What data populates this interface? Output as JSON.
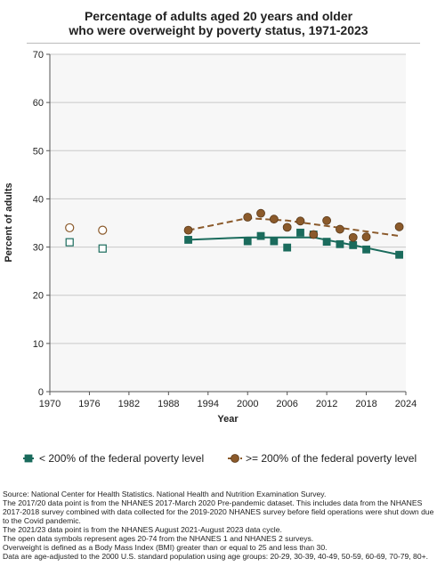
{
  "chart_data": {
    "type": "line",
    "title": [
      "Percentage of adults aged 20 years and older",
      "who were overweight by poverty status, 1971-2023"
    ],
    "xlabel": "Year",
    "ylabel": "Percent of adults",
    "xlim": [
      1970,
      2024
    ],
    "ylim": [
      0,
      70
    ],
    "xticks": [
      1970,
      1976,
      1982,
      1988,
      1994,
      2000,
      2006,
      2012,
      2018,
      2024
    ],
    "yticks": [
      0,
      10,
      20,
      30,
      40,
      50,
      60,
      70
    ],
    "grid": "horizontal",
    "legend_position": "bottom",
    "series": [
      {
        "name": "< 200% of the federal poverty level",
        "color": "#1a6b5c",
        "marker": "square",
        "open_points": [
          {
            "x": 1973,
            "y": 31.0
          },
          {
            "x": 1978,
            "y": 29.7
          }
        ],
        "points": [
          {
            "x": 1991,
            "y": 31.5
          },
          {
            "x": 2000,
            "y": 31.2
          },
          {
            "x": 2002,
            "y": 32.3
          },
          {
            "x": 2004,
            "y": 31.2
          },
          {
            "x": 2006,
            "y": 29.9
          },
          {
            "x": 2008,
            "y": 33.0
          },
          {
            "x": 2010,
            "y": 32.6
          },
          {
            "x": 2012,
            "y": 31.1
          },
          {
            "x": 2014,
            "y": 30.6
          },
          {
            "x": 2016,
            "y": 30.4
          },
          {
            "x": 2018,
            "y": 29.5
          },
          {
            "x": 2023,
            "y": 28.4
          }
        ],
        "trend": [
          {
            "x": 1991,
            "y": 31.5
          },
          {
            "x": 2000,
            "y": 32.0
          },
          {
            "x": 2010,
            "y": 32.0
          },
          {
            "x": 2016,
            "y": 30.4
          },
          {
            "x": 2023,
            "y": 28.4
          }
        ]
      },
      {
        "name": ">= 200% of the federal poverty level",
        "color": "#8b5a2b",
        "marker": "circle",
        "open_points": [
          {
            "x": 1973,
            "y": 34.0
          },
          {
            "x": 1978,
            "y": 33.5
          }
        ],
        "points": [
          {
            "x": 1991,
            "y": 33.5
          },
          {
            "x": 2000,
            "y": 36.2
          },
          {
            "x": 2002,
            "y": 37.0
          },
          {
            "x": 2004,
            "y": 35.8
          },
          {
            "x": 2006,
            "y": 34.1
          },
          {
            "x": 2008,
            "y": 35.4
          },
          {
            "x": 2010,
            "y": 32.6
          },
          {
            "x": 2012,
            "y": 35.5
          },
          {
            "x": 2014,
            "y": 33.7
          },
          {
            "x": 2016,
            "y": 32.0
          },
          {
            "x": 2018,
            "y": 32.1
          },
          {
            "x": 2023,
            "y": 34.2
          }
        ],
        "trend": [
          {
            "x": 1991,
            "y": 33.5
          },
          {
            "x": 2000,
            "y": 36.0
          },
          {
            "x": 2006,
            "y": 35.5
          },
          {
            "x": 2023,
            "y": 32.3
          }
        ]
      }
    ]
  },
  "footnotes": [
    "Source: National Center for Health Statistics. National Health and Nutrition Examination Survey.",
    "The 2017/20 data point is from the NHANES 2017-March 2020 Pre-pandemic dataset. This includes data from the NHANES 2017-2018 survey combined with data collected for the 2019-2020 NHANES survey before field operations were shut down due to the Covid pandemic.",
    "The 2021/23 data point is from the NHANES August 2021-August 2023 data cycle.",
    "The open data symbols represent ages 20-74 from the NHANES 1 and NHANES 2 surveys.",
    "Overweight is defined as a Body Mass Index (BMI) greater than or equal to 25 and less than 30.",
    "Data are age-adjusted to the 2000 U.S. standard population using age groups: 20-29, 30-39, 40-49, 50-59, 60-69, 70-79, 80+."
  ]
}
